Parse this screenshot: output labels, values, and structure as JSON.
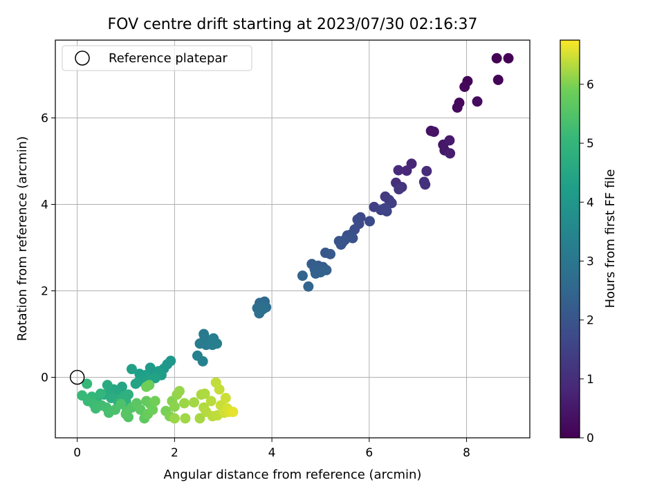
{
  "chart_data": {
    "type": "scatter",
    "title": "FOV centre drift starting at 2023/07/30 02:16:37",
    "xlabel": "Angular distance from reference (arcmin)",
    "ylabel": "Rotation from reference (arcmin)",
    "xlim": [
      -0.45,
      9.3
    ],
    "ylim": [
      -1.4,
      7.8
    ],
    "xticks": [
      0,
      2,
      4,
      6,
      8
    ],
    "yticks": [
      0,
      2,
      4,
      6
    ],
    "grid": true,
    "legend": {
      "position": "top-left",
      "entries": [
        "Reference platepar"
      ]
    },
    "reference_point": {
      "label": "Reference platepar",
      "x": 0,
      "y": 0
    },
    "colormap": "viridis",
    "colorbar": {
      "label": "Hours from first FF file",
      "range": [
        0,
        6.75
      ],
      "ticks": [
        0,
        1,
        2,
        3,
        4,
        5,
        6
      ]
    },
    "points": [
      {
        "x": 8.62,
        "y": 7.38,
        "c": 0.0
      },
      {
        "x": 8.86,
        "y": 7.38,
        "c": 0.03
      },
      {
        "x": 8.65,
        "y": 6.88,
        "c": 0.06
      },
      {
        "x": 8.02,
        "y": 6.85,
        "c": 0.09
      },
      {
        "x": 7.96,
        "y": 6.72,
        "c": 0.12
      },
      {
        "x": 7.85,
        "y": 6.35,
        "c": 0.16
      },
      {
        "x": 7.81,
        "y": 6.24,
        "c": 0.19
      },
      {
        "x": 8.22,
        "y": 6.38,
        "c": 0.22
      },
      {
        "x": 7.27,
        "y": 5.7,
        "c": 0.35
      },
      {
        "x": 7.33,
        "y": 5.68,
        "c": 0.4
      },
      {
        "x": 7.52,
        "y": 5.38,
        "c": 0.45
      },
      {
        "x": 7.55,
        "y": 5.25,
        "c": 0.5
      },
      {
        "x": 7.65,
        "y": 5.48,
        "c": 0.55
      },
      {
        "x": 7.66,
        "y": 5.18,
        "c": 0.6
      },
      {
        "x": 6.87,
        "y": 4.94,
        "c": 0.8
      },
      {
        "x": 6.77,
        "y": 4.78,
        "c": 0.85
      },
      {
        "x": 6.6,
        "y": 4.79,
        "c": 0.9
      },
      {
        "x": 7.18,
        "y": 4.77,
        "c": 0.95
      },
      {
        "x": 6.55,
        "y": 4.5,
        "c": 1.0
      },
      {
        "x": 7.13,
        "y": 4.52,
        "c": 1.05
      },
      {
        "x": 7.15,
        "y": 4.46,
        "c": 1.1
      },
      {
        "x": 6.67,
        "y": 4.4,
        "c": 1.15
      },
      {
        "x": 6.61,
        "y": 4.35,
        "c": 1.2
      },
      {
        "x": 6.33,
        "y": 4.18,
        "c": 1.3
      },
      {
        "x": 6.41,
        "y": 4.1,
        "c": 1.35
      },
      {
        "x": 6.46,
        "y": 4.03,
        "c": 1.4
      },
      {
        "x": 6.1,
        "y": 3.94,
        "c": 1.45
      },
      {
        "x": 6.24,
        "y": 3.87,
        "c": 1.5
      },
      {
        "x": 6.36,
        "y": 3.84,
        "c": 1.55
      },
      {
        "x": 6.32,
        "y": 3.91,
        "c": 1.58
      },
      {
        "x": 5.82,
        "y": 3.7,
        "c": 1.65
      },
      {
        "x": 5.76,
        "y": 3.65,
        "c": 1.7
      },
      {
        "x": 6.01,
        "y": 3.61,
        "c": 1.72
      },
      {
        "x": 5.79,
        "y": 3.55,
        "c": 1.75
      },
      {
        "x": 5.7,
        "y": 3.42,
        "c": 1.8
      },
      {
        "x": 5.62,
        "y": 3.3,
        "c": 1.85
      },
      {
        "x": 5.55,
        "y": 3.28,
        "c": 1.88
      },
      {
        "x": 5.66,
        "y": 3.22,
        "c": 1.92
      },
      {
        "x": 5.5,
        "y": 3.18,
        "c": 1.95
      },
      {
        "x": 5.38,
        "y": 3.15,
        "c": 1.98
      },
      {
        "x": 5.45,
        "y": 3.12,
        "c": 2.0
      },
      {
        "x": 5.42,
        "y": 3.07,
        "c": 2.02
      },
      {
        "x": 5.1,
        "y": 2.88,
        "c": 2.1
      },
      {
        "x": 5.2,
        "y": 2.85,
        "c": 2.12
      },
      {
        "x": 4.82,
        "y": 2.62,
        "c": 2.2
      },
      {
        "x": 4.95,
        "y": 2.58,
        "c": 2.22
      },
      {
        "x": 5.05,
        "y": 2.55,
        "c": 2.25
      },
      {
        "x": 4.88,
        "y": 2.5,
        "c": 2.28
      },
      {
        "x": 4.95,
        "y": 2.44,
        "c": 2.32
      },
      {
        "x": 5.12,
        "y": 2.48,
        "c": 2.35
      },
      {
        "x": 4.9,
        "y": 2.4,
        "c": 2.38
      },
      {
        "x": 5.0,
        "y": 2.43,
        "c": 2.4
      },
      {
        "x": 4.63,
        "y": 2.35,
        "c": 2.42
      },
      {
        "x": 4.75,
        "y": 2.1,
        "c": 2.48
      },
      {
        "x": 3.85,
        "y": 1.75,
        "c": 2.6
      },
      {
        "x": 3.75,
        "y": 1.72,
        "c": 2.63
      },
      {
        "x": 3.8,
        "y": 1.65,
        "c": 2.66
      },
      {
        "x": 3.88,
        "y": 1.62,
        "c": 2.69
      },
      {
        "x": 3.7,
        "y": 1.6,
        "c": 2.72
      },
      {
        "x": 3.78,
        "y": 1.55,
        "c": 2.75
      },
      {
        "x": 3.74,
        "y": 1.48,
        "c": 2.78
      },
      {
        "x": 3.82,
        "y": 1.58,
        "c": 2.8
      },
      {
        "x": 2.6,
        "y": 1.0,
        "c": 3.1
      },
      {
        "x": 2.62,
        "y": 0.92,
        "c": 3.13
      },
      {
        "x": 2.52,
        "y": 0.78,
        "c": 3.16
      },
      {
        "x": 2.65,
        "y": 0.75,
        "c": 3.19
      },
      {
        "x": 2.8,
        "y": 0.9,
        "c": 3.22
      },
      {
        "x": 2.78,
        "y": 0.75,
        "c": 3.25
      },
      {
        "x": 2.87,
        "y": 0.78,
        "c": 3.28
      },
      {
        "x": 2.47,
        "y": 0.5,
        "c": 3.32
      },
      {
        "x": 2.58,
        "y": 0.37,
        "c": 3.35
      },
      {
        "x": 1.92,
        "y": 0.38,
        "c": 4.0
      },
      {
        "x": 1.85,
        "y": 0.3,
        "c": 4.03
      },
      {
        "x": 1.78,
        "y": 0.2,
        "c": 4.06
      },
      {
        "x": 1.5,
        "y": 0.22,
        "c": 4.09
      },
      {
        "x": 1.55,
        "y": 0.12,
        "c": 4.12
      },
      {
        "x": 1.67,
        "y": 0.14,
        "c": 4.15
      },
      {
        "x": 1.73,
        "y": 0.05,
        "c": 4.18
      },
      {
        "x": 1.28,
        "y": 0.08,
        "c": 4.21
      },
      {
        "x": 1.35,
        "y": 0.0,
        "c": 4.24
      },
      {
        "x": 1.4,
        "y": 0.05,
        "c": 4.27
      },
      {
        "x": 1.12,
        "y": 0.19,
        "c": 4.3
      },
      {
        "x": 1.26,
        "y": -0.1,
        "c": 4.33
      },
      {
        "x": 1.45,
        "y": -0.05,
        "c": 4.36
      },
      {
        "x": 1.6,
        "y": -0.02,
        "c": 4.39
      },
      {
        "x": 1.2,
        "y": -0.15,
        "c": 4.42
      },
      {
        "x": 0.92,
        "y": -0.22,
        "c": 4.46
      },
      {
        "x": 0.75,
        "y": -0.28,
        "c": 4.5
      },
      {
        "x": 0.8,
        "y": -0.35,
        "c": 4.54
      },
      {
        "x": 0.68,
        "y": -0.32,
        "c": 4.58
      },
      {
        "x": 0.62,
        "y": -0.18,
        "c": 4.62
      },
      {
        "x": 0.55,
        "y": -0.4,
        "c": 4.66
      },
      {
        "x": 0.7,
        "y": -0.48,
        "c": 4.7
      },
      {
        "x": 0.82,
        "y": -0.52,
        "c": 4.74
      },
      {
        "x": 0.95,
        "y": -0.45,
        "c": 4.78
      },
      {
        "x": 1.05,
        "y": -0.4,
        "c": 4.82
      },
      {
        "x": 1.0,
        "y": -0.55,
        "c": 4.86
      },
      {
        "x": 0.85,
        "y": -0.6,
        "c": 4.9
      },
      {
        "x": 0.4,
        "y": -0.5,
        "c": 4.94
      },
      {
        "x": 0.48,
        "y": -0.38,
        "c": 4.98
      },
      {
        "x": 0.3,
        "y": -0.45,
        "c": 5.02
      },
      {
        "x": 0.2,
        "y": -0.15,
        "c": 5.06
      },
      {
        "x": 0.1,
        "y": -0.42,
        "c": 5.1
      },
      {
        "x": 0.22,
        "y": -0.55,
        "c": 5.14
      },
      {
        "x": 0.34,
        "y": -0.62,
        "c": 5.18
      },
      {
        "x": 0.38,
        "y": -0.72,
        "c": 5.22
      },
      {
        "x": 0.5,
        "y": -0.65,
        "c": 5.26
      },
      {
        "x": 0.6,
        "y": -0.7,
        "c": 5.3
      },
      {
        "x": 0.65,
        "y": -0.82,
        "c": 5.34
      },
      {
        "x": 0.78,
        "y": -0.75,
        "c": 5.38
      },
      {
        "x": 0.9,
        "y": -0.62,
        "c": 5.42
      },
      {
        "x": 1.02,
        "y": -0.78,
        "c": 5.46
      },
      {
        "x": 1.05,
        "y": -0.92,
        "c": 5.5
      },
      {
        "x": 1.12,
        "y": -0.7,
        "c": 5.54
      },
      {
        "x": 1.0,
        "y": -0.85,
        "c": 5.58
      },
      {
        "x": 1.22,
        "y": -0.6,
        "c": 5.62
      },
      {
        "x": 1.3,
        "y": -0.75,
        "c": 5.66
      },
      {
        "x": 1.38,
        "y": -0.95,
        "c": 5.7
      },
      {
        "x": 1.42,
        "y": -0.55,
        "c": 5.74
      },
      {
        "x": 1.5,
        "y": -0.62,
        "c": 5.78
      },
      {
        "x": 1.45,
        "y": -0.85,
        "c": 5.82
      },
      {
        "x": 1.55,
        "y": -0.75,
        "c": 5.86
      },
      {
        "x": 1.48,
        "y": -0.18,
        "c": 5.88
      },
      {
        "x": 1.42,
        "y": -0.22,
        "c": 5.9
      },
      {
        "x": 1.6,
        "y": -0.55,
        "c": 5.92
      },
      {
        "x": 1.82,
        "y": -0.78,
        "c": 5.96
      },
      {
        "x": 1.9,
        "y": -0.9,
        "c": 6.0
      },
      {
        "x": 1.95,
        "y": -0.55,
        "c": 6.04
      },
      {
        "x": 2.0,
        "y": -0.68,
        "c": 6.08
      },
      {
        "x": 2.05,
        "y": -0.4,
        "c": 6.12
      },
      {
        "x": 2.1,
        "y": -0.32,
        "c": 6.14
      },
      {
        "x": 2.0,
        "y": -0.95,
        "c": 6.16
      },
      {
        "x": 2.2,
        "y": -0.6,
        "c": 6.18
      },
      {
        "x": 2.22,
        "y": -0.95,
        "c": 6.2
      },
      {
        "x": 2.4,
        "y": -0.58,
        "c": 6.22
      },
      {
        "x": 2.52,
        "y": -0.95,
        "c": 6.24
      },
      {
        "x": 2.55,
        "y": -0.4,
        "c": 6.26
      },
      {
        "x": 2.62,
        "y": -0.38,
        "c": 6.28
      },
      {
        "x": 2.6,
        "y": -0.7,
        "c": 6.3
      },
      {
        "x": 2.65,
        "y": -0.8,
        "c": 6.32
      },
      {
        "x": 2.75,
        "y": -0.55,
        "c": 6.34
      },
      {
        "x": 2.78,
        "y": -0.9,
        "c": 6.36
      },
      {
        "x": 2.88,
        "y": -0.88,
        "c": 6.38
      },
      {
        "x": 2.85,
        "y": -0.12,
        "c": 6.4
      },
      {
        "x": 2.92,
        "y": -0.28,
        "c": 6.42
      },
      {
        "x": 2.95,
        "y": -0.65,
        "c": 6.44
      },
      {
        "x": 3.05,
        "y": -0.48,
        "c": 6.46
      },
      {
        "x": 3.02,
        "y": -0.82,
        "c": 6.48
      },
      {
        "x": 3.08,
        "y": -0.72,
        "c": 6.5
      },
      {
        "x": 3.12,
        "y": -0.8,
        "c": 6.55
      },
      {
        "x": 3.2,
        "y": -0.8,
        "c": 6.6
      }
    ]
  }
}
